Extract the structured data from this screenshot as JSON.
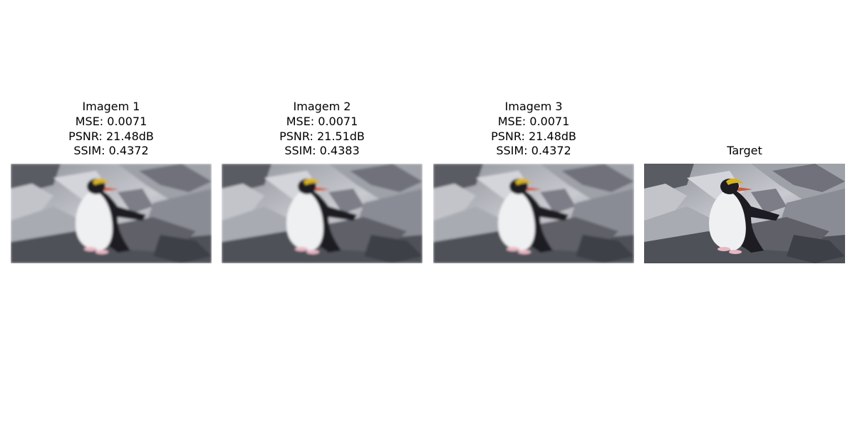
{
  "panels": [
    {
      "title": "Imagem 1",
      "mse": "MSE: 0.0071",
      "psnr": "PSNR: 21.48dB",
      "ssim": "SSIM: 0.4372",
      "blurred": true
    },
    {
      "title": "Imagem 2",
      "mse": "MSE: 0.0071",
      "psnr": "PSNR: 21.51dB",
      "ssim": "SSIM: 0.4383",
      "blurred": true
    },
    {
      "title": "Imagem 3",
      "mse": "MSE: 0.0071",
      "psnr": "PSNR: 21.48dB",
      "ssim": "SSIM: 0.4372",
      "blurred": true
    },
    {
      "title": "Target",
      "blurred": false
    }
  ],
  "image_subject": "penguin-on-rocks",
  "colors": {
    "background": "#ffffff",
    "text": "#000000",
    "rock_light": "#b7b9bf",
    "rock_dark": "#4a4c55",
    "penguin_body": "#eef0f2",
    "penguin_back": "#1c1d22",
    "crest": "#d7b21c",
    "beak": "#d05a3a",
    "feet": "#e8b7c2"
  }
}
